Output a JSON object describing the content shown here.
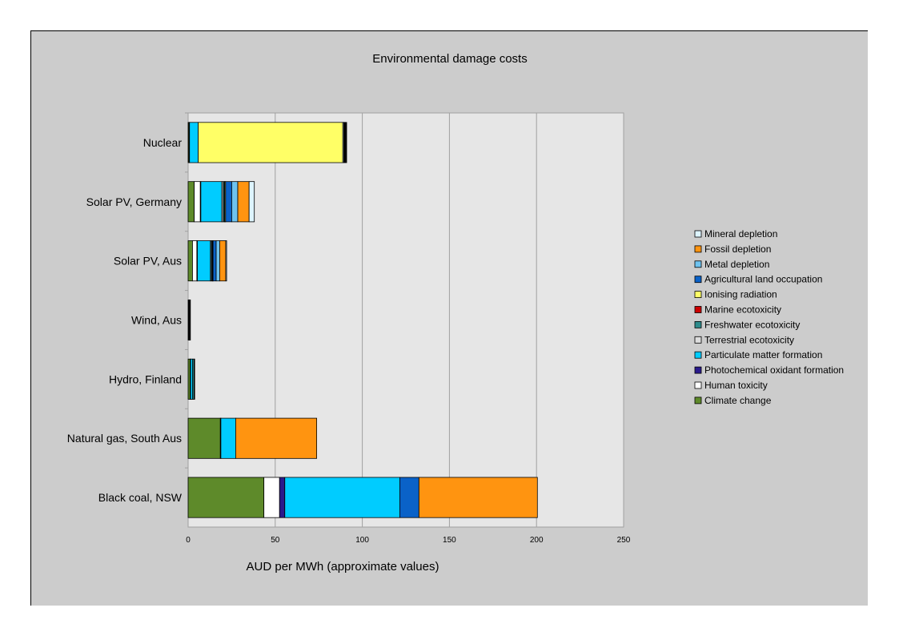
{
  "chart_data": {
    "type": "bar",
    "orientation": "horizontal",
    "stacked": true,
    "title": "Environmental damage costs",
    "xlabel": "AUD per MWh  (approximate values)",
    "ylabel": "",
    "xlim": [
      0,
      250
    ],
    "xticks": [
      "0",
      "50",
      "100",
      "150",
      "200",
      "250"
    ],
    "grid": true,
    "legend_position": "right",
    "categories": [
      "Nuclear",
      "Solar PV, Germany",
      "Solar PV, Aus",
      "Wind, Aus",
      "Hydro, Finland",
      "Natural gas, South Aus",
      "Black coal, NSW"
    ],
    "series": [
      {
        "name": "Climate change",
        "color": "#5e8a2a",
        "values": [
          0.5,
          3.5,
          2.5,
          0.3,
          1.2,
          18.5,
          43.5
        ]
      },
      {
        "name": "Human toxicity",
        "color": "#ffffff",
        "values": [
          0.3,
          3.5,
          2.5,
          0.2,
          0.2,
          0.3,
          9
        ]
      },
      {
        "name": "Photochemical oxidant formation",
        "color": "#2a1a8c",
        "values": [
          0,
          0.3,
          0.3,
          0,
          0,
          0,
          3
        ]
      },
      {
        "name": "Particulate matter formation",
        "color": "#00ccff",
        "values": [
          5,
          12,
          7.5,
          0.3,
          1.2,
          8.5,
          66
        ]
      },
      {
        "name": "Terrestrial ecotoxicity",
        "color": "#dddddd",
        "values": [
          0,
          0.8,
          0.5,
          0,
          0,
          0,
          0
        ]
      },
      {
        "name": "Freshwater ecotoxicity",
        "color": "#2e8b8b",
        "values": [
          0,
          0.7,
          0.5,
          0,
          0.8,
          0,
          0
        ]
      },
      {
        "name": "Marine ecotoxicity",
        "color": "#cc0000",
        "values": [
          0,
          0.2,
          0.2,
          0,
          0,
          0,
          0
        ]
      },
      {
        "name": "Ionising radiation",
        "color": "#ffff66",
        "values": [
          83,
          0.5,
          0.3,
          0,
          0,
          0,
          0
        ]
      },
      {
        "name": "Agricultural land occupation",
        "color": "#0a62c8",
        "values": [
          0,
          3.5,
          1.8,
          0,
          0,
          0,
          11
        ]
      },
      {
        "name": "Metal depletion",
        "color": "#6ec3f0",
        "values": [
          0,
          3.5,
          2,
          0,
          0,
          0,
          0
        ]
      },
      {
        "name": "Fossil depletion",
        "color": "#ff9410",
        "values": [
          0,
          6.5,
          3.5,
          0,
          0,
          46.5,
          68
        ]
      },
      {
        "name": "Mineral depletion",
        "color": "#ddf4ff",
        "values": [
          0.6,
          3,
          0.5,
          0,
          0,
          0,
          0
        ]
      },
      {
        "name": "",
        "color": "#000000",
        "values": [
          1.6,
          0,
          0,
          0.5,
          0.3,
          0,
          0
        ]
      }
    ]
  }
}
